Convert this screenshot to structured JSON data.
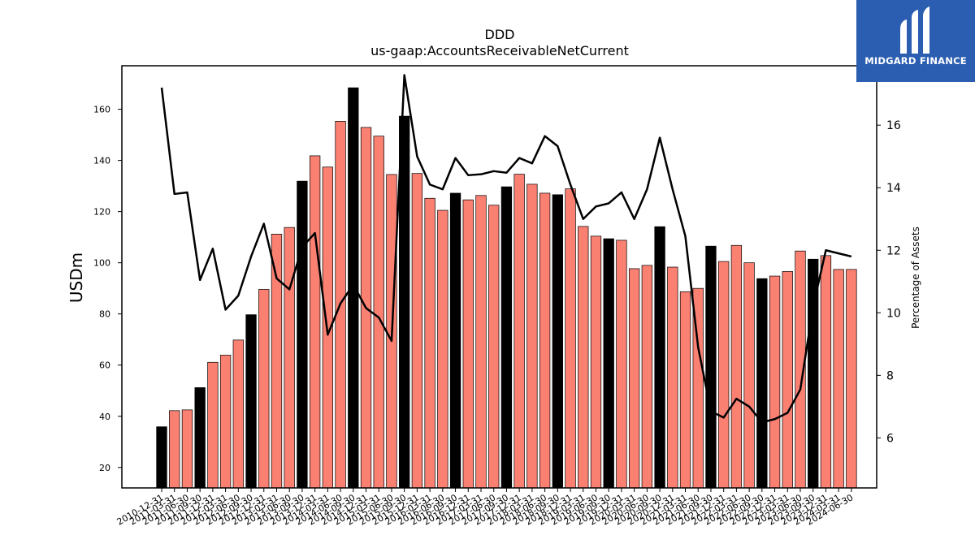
{
  "chart_data": {
    "type": "bar",
    "title": "DDD",
    "subtitle": "us-gaap:AccountsReceivableNetCurrent",
    "ylabel": "USDm",
    "y2label": "Percentage of Assets",
    "ylim": [
      12,
      177
    ],
    "y2lim": [
      4.4,
      17.9
    ],
    "yticks": [
      20,
      40,
      60,
      80,
      100,
      120,
      140,
      160
    ],
    "y2ticks": [
      6,
      8,
      10,
      12,
      14,
      16
    ],
    "bar_colors": {
      "annual": "#000000",
      "quarterly": "#fa8072"
    },
    "line_color": "#000000",
    "categories": [
      "2010-12-31",
      "2011-03-31",
      "2011-06-30",
      "2011-09-30",
      "2011-12-31",
      "2012-03-31",
      "2012-06-30",
      "2012-09-30",
      "2012-12-31",
      "2013-03-31",
      "2013-06-30",
      "2013-09-30",
      "2013-12-31",
      "2014-03-31",
      "2014-06-30",
      "2014-09-30",
      "2014-12-31",
      "2015-03-31",
      "2015-06-30",
      "2015-09-30",
      "2015-12-31",
      "2016-03-31",
      "2016-06-30",
      "2016-09-30",
      "2016-12-31",
      "2017-03-31",
      "2017-06-30",
      "2017-09-30",
      "2017-12-31",
      "2018-03-31",
      "2018-06-30",
      "2018-09-30",
      "2018-12-31",
      "2019-03-31",
      "2019-06-30",
      "2019-09-30",
      "2019-12-31",
      "2020-03-31",
      "2020-06-30",
      "2020-09-30",
      "2020-12-31",
      "2021-03-31",
      "2021-06-30",
      "2021-09-30",
      "2021-12-31",
      "2022-03-31",
      "2022-06-30",
      "2022-09-30",
      "2022-12-31",
      "2023-03-31",
      "2023-06-30",
      "2023-09-30",
      "2023-12-31",
      "2024-03-31",
      "2024-06-30"
    ],
    "xtick_labels": [
      "2010-12-31",
      "2011-03-31",
      "2011-06-30",
      "2011-09-30",
      "2011-12-31",
      "2012-03-31",
      "2012-06-30",
      "2012-09-30",
      "2012-12-31",
      "2013-03-31",
      "2013-06-30",
      "2013-09-30",
      "2013-12-31",
      "2014-03-31",
      "2014-06-30",
      "2014-09-30",
      "2014-12-31",
      "2015-03-31",
      "2015-06-30",
      "2015-09-30",
      "2015-12-31",
      "2016-03-31",
      "2016-06-30",
      "2016-09-30",
      "2016-12-31",
      "2017-03-31",
      "2017-06-30",
      "2017-09-30",
      "2017-12-31",
      "2018-03-31",
      "2018-06-30",
      "2018-09-30",
      "2018-12-31",
      "2019-03-31",
      "2019-06-30",
      "2019-09-30",
      "2019-12-31",
      "2020-03-31",
      "2020-06-30",
      "2020-09-30",
      "2020-12-31",
      "2021-03-31",
      "2021-06-30",
      "2021-09-30",
      "2021-12-31",
      "2022-03-31",
      "2022-06-30",
      "2022-09-30",
      "2022-12-31",
      "2023-03-31",
      "2023-06-30",
      "2023-09-30",
      "2023-12-31",
      "2024-03-31",
      "2024-06-30"
    ],
    "values": [
      35.9,
      42.2,
      42.5,
      51.2,
      61.1,
      63.9,
      69.8,
      79.7,
      89.6,
      111.2,
      113.8,
      131.9,
      141.8,
      137.4,
      155.3,
      168.4,
      152.9,
      149.5,
      134.5,
      157.3,
      134.9,
      125.2,
      120.5,
      127.2,
      124.6,
      126.3,
      122.5,
      129.7,
      134.6,
      130.7,
      127.2,
      126.6,
      128.9,
      114.2,
      110.4,
      109.4,
      108.8,
      97.7,
      99.0,
      114.1,
      98.3,
      88.7,
      90.0,
      106.5,
      100.5,
      106.8,
      100.0,
      93.8,
      94.8,
      96.6,
      104.6,
      101.4,
      102.8,
      97.4,
      97.4
    ],
    "is_annual": [
      true,
      false,
      false,
      true,
      false,
      false,
      false,
      true,
      false,
      false,
      false,
      true,
      false,
      false,
      false,
      true,
      false,
      false,
      false,
      true,
      false,
      false,
      false,
      true,
      false,
      false,
      false,
      true,
      false,
      false,
      false,
      true,
      false,
      false,
      false,
      true,
      false,
      false,
      false,
      true,
      false,
      false,
      false,
      true,
      false,
      false,
      false,
      true,
      false,
      false,
      false,
      true,
      false,
      false,
      false
    ],
    "pct_assets": [
      17.2,
      13.8,
      13.85,
      11.05,
      12.05,
      10.1,
      10.55,
      11.8,
      12.85,
      11.1,
      10.75,
      12.1,
      12.55,
      9.3,
      10.3,
      10.9,
      10.15,
      9.85,
      9.1,
      17.6,
      15.0,
      14.1,
      13.95,
      14.95,
      14.4,
      14.43,
      14.53,
      14.48,
      14.95,
      14.78,
      15.65,
      15.33,
      14.1,
      13.0,
      13.4,
      13.5,
      13.85,
      13.0,
      13.95,
      15.6,
      13.95,
      12.45,
      8.9,
      6.85,
      6.65,
      7.25,
      7.0,
      6.5,
      6.6,
      6.8,
      7.55,
      10.2,
      12.0,
      11.9,
      11.8
    ]
  },
  "logo": {
    "text": "MIDGARD FINANCE"
  }
}
